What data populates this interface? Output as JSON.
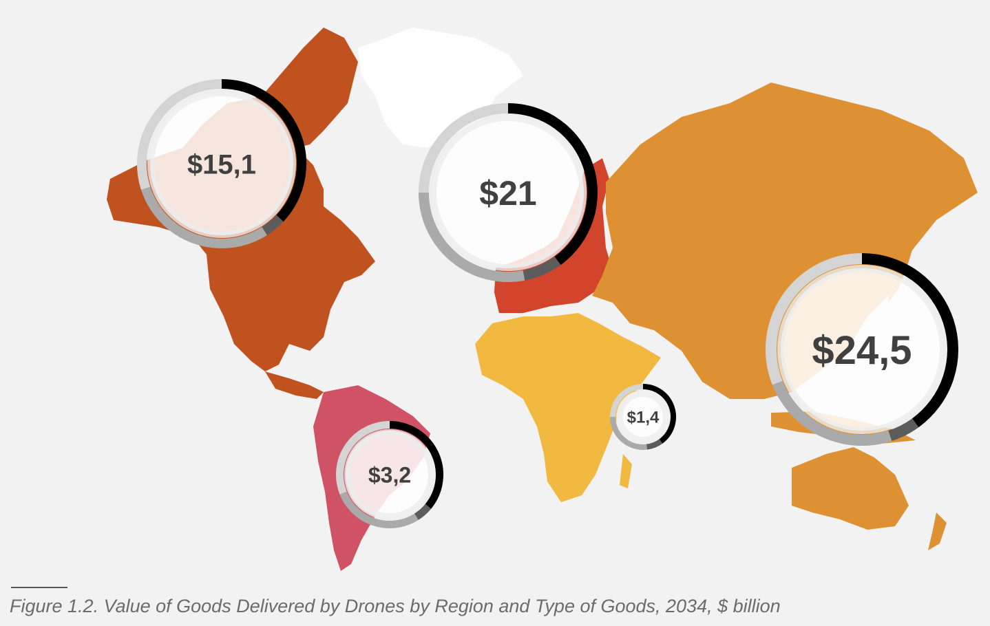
{
  "caption": "Figure 1.2. Value of Goods Delivered by Drones by Region and Type of Goods, 2034, $ billion",
  "colors": {
    "background": "#f2f2f2",
    "north_america": "#c0521f",
    "europe": "#d2442b",
    "asia_pacific": "#dd9132",
    "africa": "#f1b93f",
    "latin_america": "#cf5365",
    "greenland": "#ffffff",
    "ring_segment_1": "#000000",
    "ring_segment_2": "#5c5c5c",
    "ring_segment_3": "#aaaaaa",
    "ring_segment_4": "#d4d4d4"
  },
  "regions": [
    {
      "id": "north-america",
      "value_label": "$15,1",
      "ring_shares": [
        0.37,
        0.04,
        0.29,
        0.3
      ],
      "map_color": "#c0521f"
    },
    {
      "id": "europe",
      "value_label": "$21",
      "ring_shares": [
        0.4,
        0.07,
        0.28,
        0.25
      ],
      "map_color": "#d2442b"
    },
    {
      "id": "asia-pacific",
      "value_label": "$24,5",
      "ring_shares": [
        0.4,
        0.05,
        0.24,
        0.31
      ],
      "map_color": "#dd9132"
    },
    {
      "id": "latin-america",
      "value_label": "$3,2",
      "ring_shares": [
        0.36,
        0.05,
        0.28,
        0.31
      ],
      "map_color": "#cf5365"
    },
    {
      "id": "middle-east-africa",
      "value_label": "$1,4",
      "ring_shares": [
        0.4,
        0.08,
        0.27,
        0.25
      ],
      "map_color": "#f1b93f"
    }
  ]
}
